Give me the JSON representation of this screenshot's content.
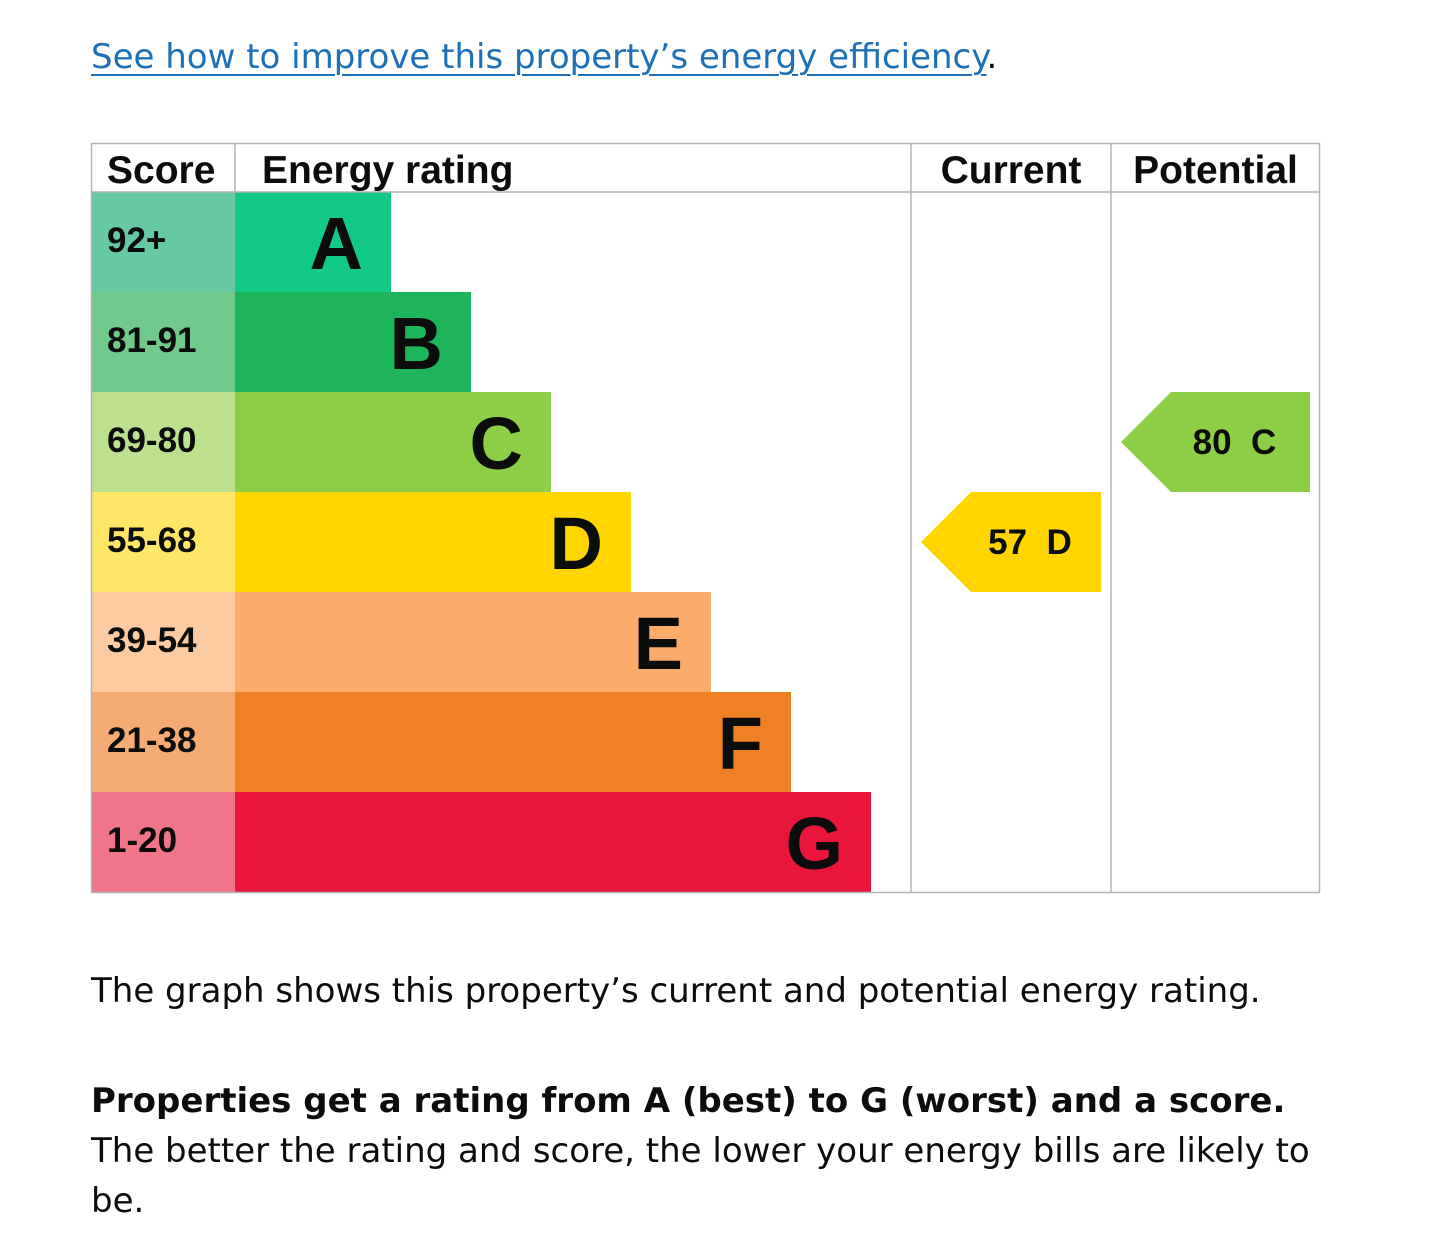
{
  "improve_link": {
    "text": "See how to improve this property’s energy efficiency",
    "suffix": "."
  },
  "colors": {
    "A": "#13c986",
    "B": "#1eb459",
    "C": "#8ccf47",
    "D": "#ffd500",
    "E": "#fbab6a",
    "F": "#ef8023",
    "G": "#e9153b",
    "score_A": "#66c9a4",
    "score_B": "#71c98b",
    "score_C": "#bde08f",
    "score_D": "#ffe666",
    "score_E": "#fdcba2",
    "score_F": "#f4ab74",
    "score_G": "#f07589",
    "grid": "#b1b4b6"
  },
  "chart_data": {
    "type": "table",
    "columns": [
      "Score",
      "Energy rating",
      "Current",
      "Potential"
    ],
    "bands": [
      {
        "letter": "A",
        "score_range": "92+"
      },
      {
        "letter": "B",
        "score_range": "81-91"
      },
      {
        "letter": "C",
        "score_range": "69-80"
      },
      {
        "letter": "D",
        "score_range": "55-68"
      },
      {
        "letter": "E",
        "score_range": "39-54"
      },
      {
        "letter": "F",
        "score_range": "21-38"
      },
      {
        "letter": "G",
        "score_range": "1-20"
      }
    ],
    "current": {
      "score": 57,
      "band": "D",
      "label": "57  D"
    },
    "potential": {
      "score": 80,
      "band": "C",
      "label": "80  C"
    }
  },
  "caption": "The graph shows this property’s current and potential energy rating.",
  "summary": {
    "bold": "Properties get a rating from A (best) to G (worst) and a score.",
    "rest": " The better the rating and score, the lower your energy bills are likely to be."
  }
}
